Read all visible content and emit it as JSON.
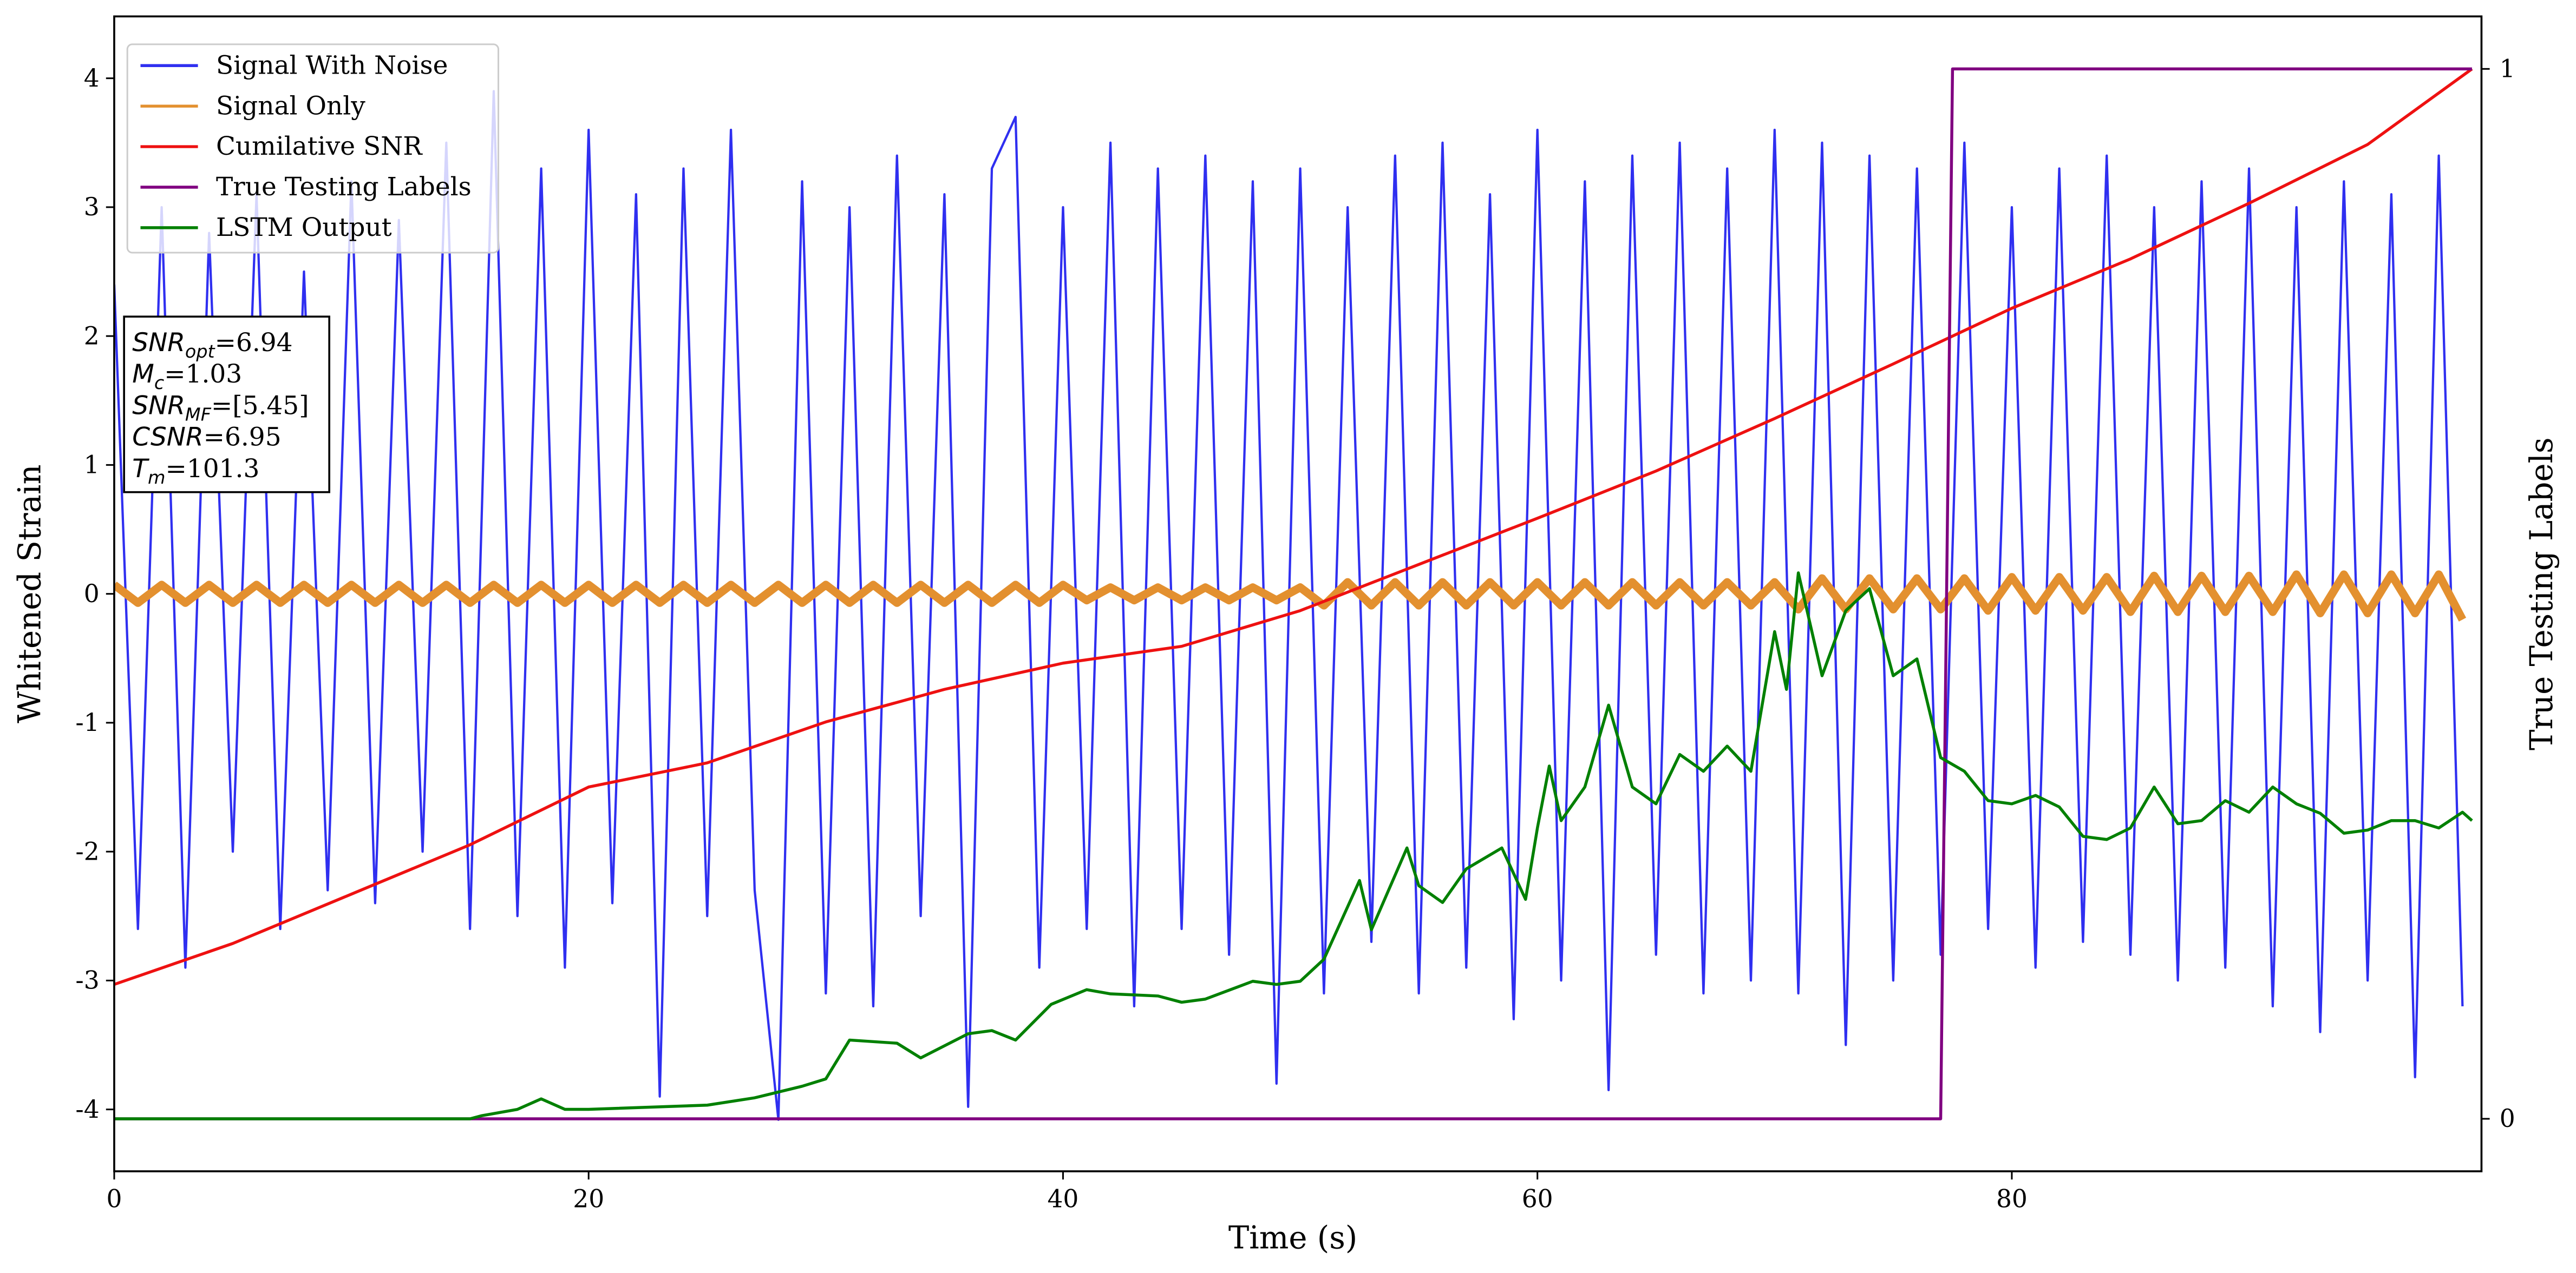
{
  "chart_data": {
    "type": "line",
    "xlabel": "Time (s)",
    "ylabel": "Whitened Strain",
    "y2label": "True Testing Labels",
    "xlim": [
      0,
      99.8
    ],
    "xticks": [
      0,
      20,
      40,
      60,
      80
    ],
    "ylim": [
      -4.48,
      4.48
    ],
    "yticks": [
      -4,
      -3,
      -2,
      -1,
      0,
      1,
      2,
      3,
      4
    ],
    "y2lim": [
      -0.05,
      1.05
    ],
    "y2ticks": [
      0,
      1
    ],
    "legend": "upper left",
    "annotation": [
      {
        "base": "SNR",
        "sub": "opt",
        "text": "=6.94"
      },
      {
        "base": "M",
        "sub": "c",
        "text": "=1.03"
      },
      {
        "base": "SNR",
        "sub": "MF",
        "text": "=[5.45]"
      },
      {
        "base": "CSNR",
        "text": "=6.95"
      },
      {
        "base": "T",
        "sub": "m",
        "text": "=101.3"
      }
    ],
    "series": [
      {
        "name": "Signal With Noise",
        "color": "#2f2ff0",
        "width": 1.4,
        "x": [
          0,
          1,
          2,
          3,
          4,
          5,
          6,
          7,
          8,
          9,
          10,
          11,
          12,
          13,
          14,
          15,
          16,
          17,
          18,
          19,
          20,
          21,
          22,
          23,
          24,
          25,
          26,
          27,
          28,
          29,
          30,
          31,
          32,
          33,
          34,
          35,
          36,
          37,
          38,
          39,
          40,
          41,
          42,
          43,
          44,
          45,
          46,
          47,
          48,
          49,
          50,
          51,
          52,
          53,
          54,
          55,
          56,
          57,
          58,
          59,
          60,
          61,
          62,
          63,
          64,
          65,
          66,
          67,
          68,
          69,
          70,
          71,
          72,
          73,
          74,
          75,
          76,
          77,
          78,
          79,
          80,
          81,
          82,
          83,
          84,
          85,
          86,
          87,
          88,
          89,
          90,
          91,
          92,
          93,
          94,
          95,
          96,
          97,
          98,
          99
        ],
        "values": [
          2.4,
          -2.6,
          3.0,
          -2.9,
          2.8,
          -2.0,
          3.1,
          -2.6,
          2.5,
          -2.3,
          3.2,
          -2.4,
          2.9,
          -2.0,
          3.5,
          -2.6,
          3.9,
          -2.5,
          3.3,
          -2.9,
          3.6,
          -2.4,
          3.1,
          -3.9,
          3.3,
          -2.5,
          3.6,
          -2.3,
          -4.08,
          3.2,
          -3.1,
          3.0,
          -3.2,
          3.4,
          -2.5,
          3.1,
          -3.98,
          3.3,
          3.7,
          -2.9,
          3.0,
          -2.6,
          3.5,
          -3.2,
          3.3,
          -2.6,
          3.4,
          -2.8,
          3.2,
          -3.8,
          3.3,
          -3.1,
          3.0,
          -2.7,
          3.4,
          -3.1,
          3.5,
          -2.9,
          3.1,
          -3.3,
          3.6,
          -3.0,
          3.2,
          -3.85,
          3.4,
          -2.8,
          3.5,
          -3.1,
          3.3,
          -3.0,
          3.6,
          -3.1,
          3.5,
          -3.5,
          3.4,
          -3.0,
          3.3,
          -2.8,
          3.5,
          -2.6,
          3.0,
          -2.9,
          3.3,
          -2.7,
          3.4,
          -2.8,
          3.0,
          -3.0,
          3.2,
          -2.9,
          3.3,
          -3.2,
          3.0,
          -3.4,
          3.2,
          -3.0,
          3.1,
          -3.75,
          3.4,
          -3.2
        ]
      },
      {
        "name": "Signal Only",
        "color": "#e3902f",
        "width": 5,
        "x": [
          0,
          1,
          2,
          3,
          4,
          5,
          6,
          7,
          8,
          9,
          10,
          11,
          12,
          13,
          14,
          15,
          16,
          17,
          18,
          19,
          20,
          21,
          22,
          23,
          24,
          25,
          26,
          27,
          28,
          29,
          30,
          31,
          32,
          33,
          34,
          35,
          36,
          37,
          38,
          39,
          40,
          41,
          42,
          43,
          44,
          45,
          46,
          47,
          48,
          49,
          50,
          51,
          52,
          53,
          54,
          55,
          56,
          57,
          58,
          59,
          60,
          61,
          62,
          63,
          64,
          65,
          66,
          67,
          68,
          69,
          70,
          71,
          72,
          73,
          74,
          75,
          76,
          77,
          78,
          79,
          80,
          81,
          82,
          83,
          84,
          85,
          86,
          87,
          88,
          89,
          90,
          91,
          92,
          93,
          94,
          95,
          96,
          97,
          98,
          99
        ],
        "values": [
          0.07,
          -0.07,
          0.07,
          -0.07,
          0.07,
          -0.07,
          0.07,
          -0.07,
          0.07,
          -0.07,
          0.07,
          -0.07,
          0.07,
          -0.07,
          0.07,
          -0.07,
          0.07,
          -0.07,
          0.07,
          -0.07,
          0.07,
          -0.07,
          0.07,
          -0.07,
          0.07,
          -0.07,
          0.07,
          -0.07,
          0.07,
          -0.07,
          0.07,
          -0.07,
          0.07,
          -0.07,
          0.07,
          -0.07,
          0.07,
          -0.07,
          0.07,
          -0.07,
          0.07,
          -0.05,
          0.05,
          -0.05,
          0.05,
          -0.05,
          0.05,
          -0.05,
          0.05,
          -0.05,
          0.05,
          -0.09,
          0.09,
          -0.09,
          0.09,
          -0.09,
          0.09,
          -0.09,
          0.09,
          -0.09,
          0.09,
          -0.09,
          0.09,
          -0.09,
          0.09,
          -0.09,
          0.09,
          -0.09,
          0.09,
          -0.09,
          0.09,
          -0.12,
          0.12,
          -0.12,
          0.12,
          -0.12,
          0.12,
          -0.12,
          0.12,
          -0.13,
          0.13,
          -0.13,
          0.13,
          -0.13,
          0.13,
          -0.14,
          0.14,
          -0.14,
          0.14,
          -0.14,
          0.14,
          -0.14,
          0.15,
          -0.15,
          0.15,
          -0.15,
          0.15,
          -0.15,
          0.15,
          -0.2
        ]
      },
      {
        "name": "Cumilative SNR",
        "color": "#ee1111",
        "width": 1.8,
        "axis": "y2",
        "x": [
          0,
          5,
          10,
          15,
          20,
          25,
          30,
          35,
          40,
          45,
          50,
          55,
          60,
          65,
          70,
          75,
          80,
          85,
          90,
          95,
          99.4
        ],
        "values": [
          0.128,
          0.167,
          0.214,
          0.261,
          0.316,
          0.339,
          0.378,
          0.409,
          0.434,
          0.45,
          0.484,
          0.528,
          0.572,
          0.617,
          0.667,
          0.719,
          0.772,
          0.819,
          0.872,
          0.928,
          1.0
        ]
      },
      {
        "name": "True Testing Labels",
        "color": "#800080",
        "width": 1.8,
        "axis": "y2",
        "x": [
          0,
          77,
          77.5,
          99.4
        ],
        "values": [
          0,
          0,
          1,
          1
        ]
      },
      {
        "name": "LSTM Output",
        "color": "#008000",
        "width": 1.8,
        "axis": "y2",
        "x": [
          0,
          15,
          15.5,
          17,
          18,
          19,
          20,
          25,
          27,
          29,
          30,
          31,
          33,
          34,
          36,
          37,
          38,
          39.5,
          41,
          42,
          44,
          45,
          46,
          48,
          49,
          50,
          51,
          52.5,
          53,
          54.5,
          55,
          56,
          57,
          58.5,
          59.5,
          60,
          60.5,
          61,
          62,
          63,
          64,
          65,
          66,
          67,
          68,
          69,
          70,
          70.5,
          71,
          72,
          73,
          74,
          75,
          76,
          77,
          78,
          79,
          80,
          81,
          82,
          83,
          84,
          85,
          86,
          87,
          88,
          89,
          90,
          91,
          92,
          93,
          94,
          95,
          96,
          97,
          98,
          99,
          99.4
        ],
        "values": [
          0,
          0,
          0.003,
          0.009,
          0.019,
          0.009,
          0.009,
          0.013,
          0.02,
          0.031,
          0.038,
          0.075,
          0.072,
          0.058,
          0.081,
          0.084,
          0.075,
          0.109,
          0.123,
          0.119,
          0.117,
          0.111,
          0.114,
          0.131,
          0.128,
          0.131,
          0.152,
          0.227,
          0.18,
          0.258,
          0.222,
          0.206,
          0.238,
          0.258,
          0.209,
          0.277,
          0.336,
          0.284,
          0.316,
          0.394,
          0.316,
          0.3,
          0.347,
          0.331,
          0.355,
          0.331,
          0.464,
          0.409,
          0.52,
          0.422,
          0.484,
          0.505,
          0.422,
          0.438,
          0.344,
          0.331,
          0.303,
          0.3,
          0.308,
          0.297,
          0.269,
          0.266,
          0.277,
          0.316,
          0.281,
          0.284,
          0.303,
          0.292,
          0.316,
          0.3,
          0.291,
          0.272,
          0.275,
          0.284,
          0.284,
          0.277,
          0.292,
          0.284
        ]
      }
    ]
  }
}
